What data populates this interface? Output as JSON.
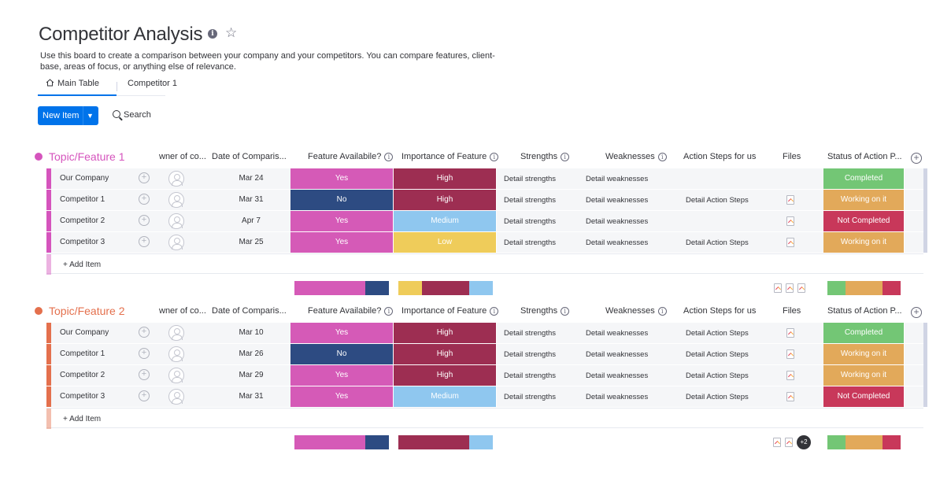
{
  "page": {
    "title": "Competitor Analysis",
    "description": "Use this board to create a comparison between your company and your competitors. You can compare features, client-base, areas of focus, or anything else of relevance."
  },
  "tabs": [
    {
      "label": "Main Table",
      "icon": "home-icon",
      "active": true
    },
    {
      "label": "Competitor 1",
      "active": false
    }
  ],
  "toolbar": {
    "new_item_label": "New Item",
    "search_label": "Search"
  },
  "columns": {
    "owner": "wner of co...",
    "date": "Date of Comparis...",
    "feature": "Feature Availabile?",
    "importance": "Importance of Feature",
    "strengths": "Strengths",
    "weaknesses": "Weaknesses",
    "actions": "Action Steps for us",
    "files": "Files",
    "status": "Status of Action P..."
  },
  "colors": {
    "yes": "#d55ab7",
    "no": "#2d4b82",
    "high": "#9d2e52",
    "medium": "#8fc7ef",
    "low": "#efcc5a",
    "completed": "#73c675",
    "working": "#e2a95a",
    "not_completed": "#c8385a",
    "group1": "#d554bd",
    "group2": "#e4704d"
  },
  "groups": [
    {
      "title": "Topic/Feature 1",
      "color": "#d554bd",
      "add_item": "+ Add Item",
      "rows": [
        {
          "name": "Our Company",
          "date": "Mar 24",
          "feature": "Yes",
          "importance": "High",
          "strengths": "Detail strengths",
          "weaknesses": "Detail weaknesses",
          "actions": "",
          "has_file": false,
          "status": "Completed"
        },
        {
          "name": "Competitor 1",
          "date": "Mar 31",
          "feature": "No",
          "importance": "High",
          "strengths": "Detail strengths",
          "weaknesses": "Detail weaknesses",
          "actions": "Detail Action Steps",
          "has_file": true,
          "status": "Working on it"
        },
        {
          "name": "Competitor 2",
          "date": "Apr 7",
          "feature": "Yes",
          "importance": "Medium",
          "strengths": "Detail strengths",
          "weaknesses": "Detail weaknesses",
          "actions": "",
          "has_file": true,
          "status": "Not Completed"
        },
        {
          "name": "Competitor 3",
          "date": "Mar 25",
          "feature": "Yes",
          "importance": "Low",
          "strengths": "Detail strengths",
          "weaknesses": "Detail weaknesses",
          "actions": "Detail Action Steps",
          "has_file": true,
          "status": "Working on it"
        }
      ],
      "summary_more": ""
    },
    {
      "title": "Topic/Feature 2",
      "color": "#e4704d",
      "add_item": "+ Add Item",
      "rows": [
        {
          "name": "Our Company",
          "date": "Mar 10",
          "feature": "Yes",
          "importance": "High",
          "strengths": "Detail strengths",
          "weaknesses": "Detail weaknesses",
          "actions": "Detail Action Steps",
          "has_file": true,
          "status": "Completed"
        },
        {
          "name": "Competitor 1",
          "date": "Mar 26",
          "feature": "No",
          "importance": "High",
          "strengths": "Detail strengths",
          "weaknesses": "Detail weaknesses",
          "actions": "Detail Action Steps",
          "has_file": true,
          "status": "Working on it"
        },
        {
          "name": "Competitor 2",
          "date": "Mar 29",
          "feature": "Yes",
          "importance": "High",
          "strengths": "Detail strengths",
          "weaknesses": "Detail weaknesses",
          "actions": "Detail Action Steps",
          "has_file": true,
          "status": "Working on it"
        },
        {
          "name": "Competitor 3",
          "date": "Mar 31",
          "feature": "Yes",
          "importance": "Medium",
          "strengths": "Detail strengths",
          "weaknesses": "Detail weaknesses",
          "actions": "Detail Action Steps",
          "has_file": true,
          "status": "Not Completed"
        }
      ],
      "summary_more": "+2"
    }
  ]
}
